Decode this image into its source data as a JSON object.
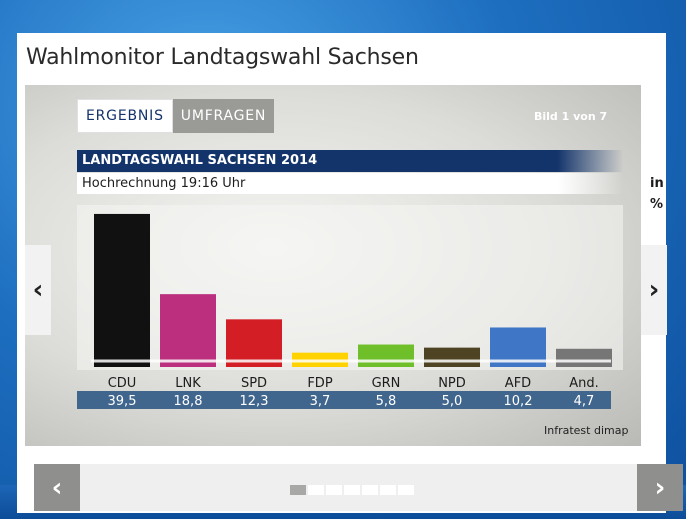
{
  "page": {
    "title": "Wahlmonitor Landtagswahl Sachsen"
  },
  "tabs": [
    {
      "label": "ERGEBNIS",
      "active": true
    },
    {
      "label": "UMFRAGEN",
      "active": false
    }
  ],
  "pager": {
    "label": "Bild 1 von 7",
    "current": 1,
    "total": 7
  },
  "chart": {
    "header": "LANDTAGSWAHL SACHSEN 2014",
    "subheader": "Hochrechnung 19:16 Uhr",
    "unit": "in %",
    "credit": "Infratest dimap"
  },
  "chart_data": {
    "type": "bar",
    "title": "LANDTAGSWAHL SACHSEN 2014",
    "subtitle": "Hochrechnung 19:16 Uhr",
    "categories": [
      "CDU",
      "LNK",
      "SPD",
      "FDP",
      "GRN",
      "NPD",
      "AFD",
      "And."
    ],
    "values": [
      39.5,
      18.8,
      12.3,
      3.7,
      5.8,
      5.0,
      10.2,
      4.7
    ],
    "value_labels": [
      "39,5",
      "18,8",
      "12,3",
      "3,7",
      "5,8",
      "5,0",
      "10,2",
      "4,7"
    ],
    "colors": [
      "#111111",
      "#bb2f7e",
      "#d21e24",
      "#ffd200",
      "#6fbf2a",
      "#4e4423",
      "#3f76c6",
      "#767676"
    ],
    "ylim": [
      0,
      40
    ],
    "legend": "none",
    "grid": false
  },
  "icons": {
    "prev": "chevron-left-icon",
    "next": "chevron-right-icon"
  },
  "colors": {
    "header_bg": "#13346b",
    "value_row_bg": "#41668e",
    "active_tab_text": "#13346b"
  }
}
